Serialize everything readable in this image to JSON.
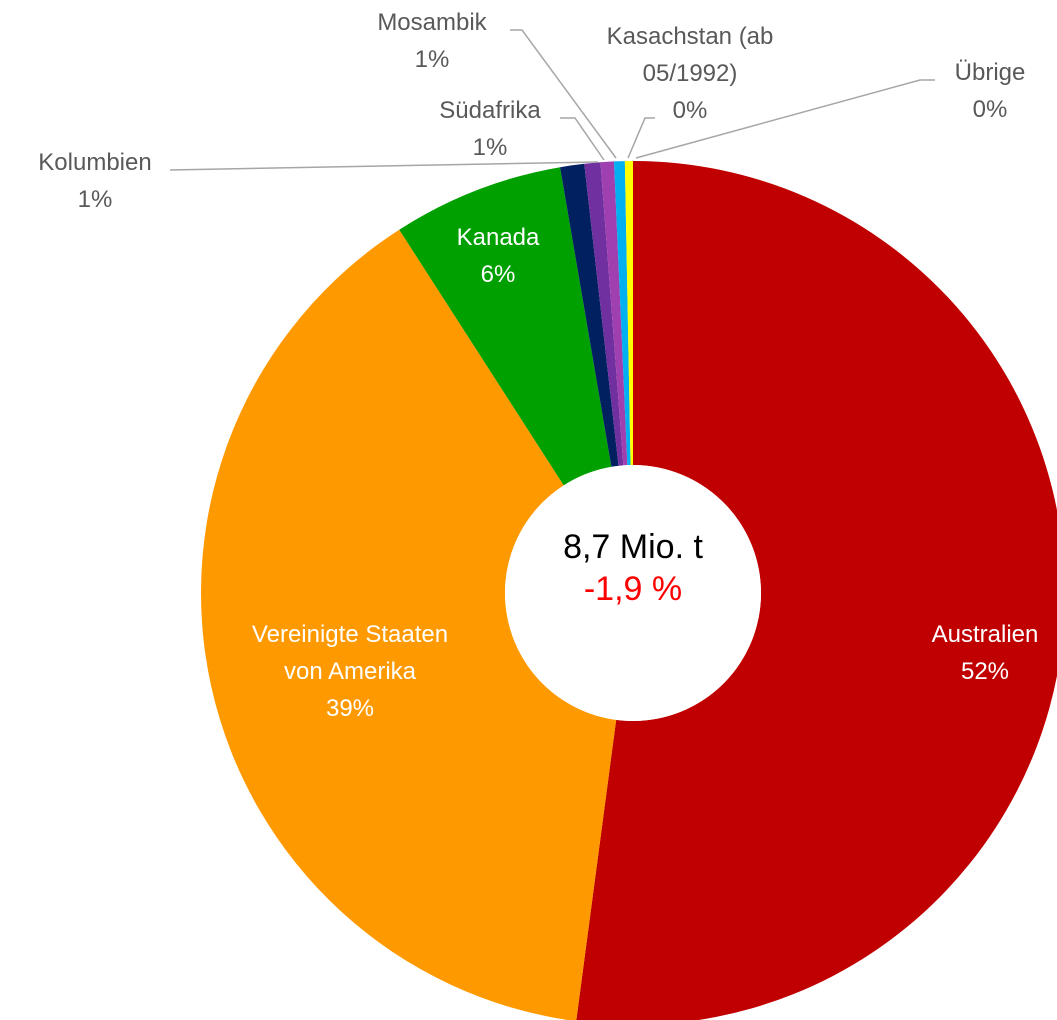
{
  "chart_data": {
    "type": "pie",
    "categories": [
      "Australien",
      "Vereinigte Staaten von Amerika",
      "Kanada",
      "Kolumbien",
      "Südafrika",
      "Mosambik",
      "Kasachstan (ab 05/1992)",
      "Übrige"
    ],
    "values": [
      52.1,
      38.8,
      6.4,
      0.9,
      0.6,
      0.5,
      0.4,
      0.3
    ],
    "value_labels": [
      "52%",
      "39%",
      "6%",
      "1%",
      "1%",
      "1%",
      "0%",
      "0%"
    ],
    "colors": [
      "#c00000",
      "#ff9900",
      "#00a000",
      "#002060",
      "#7030a0",
      "#a040b0",
      "#00b0f0",
      "#ffff00"
    ],
    "center_label": "8,7 Mio. t",
    "center_change": "-1,9 %"
  }
}
